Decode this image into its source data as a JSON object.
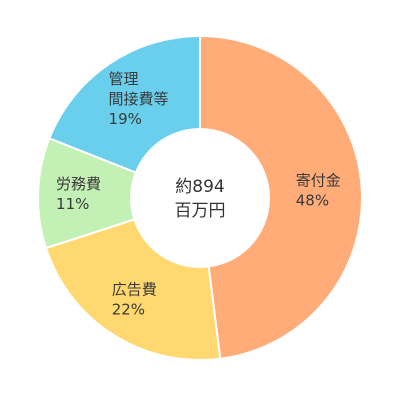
{
  "chart_data": {
    "type": "pie",
    "donut": true,
    "total_label": [
      "約894",
      "百万円"
    ],
    "slices": [
      {
        "label": [
          "寄付金"
        ],
        "percent_label": "48%",
        "value": 48,
        "color": "#FFAC79"
      },
      {
        "label": [
          "広告費"
        ],
        "percent_label": "22%",
        "value": 22,
        "color": "#FFD970"
      },
      {
        "label": [
          "労務費"
        ],
        "percent_label": "11%",
        "value": 11,
        "color": "#C3F0B4"
      },
      {
        "label": [
          "管理",
          "間接費等"
        ],
        "percent_label": "19%",
        "value": 19,
        "color": "#69CFEC"
      }
    ]
  }
}
